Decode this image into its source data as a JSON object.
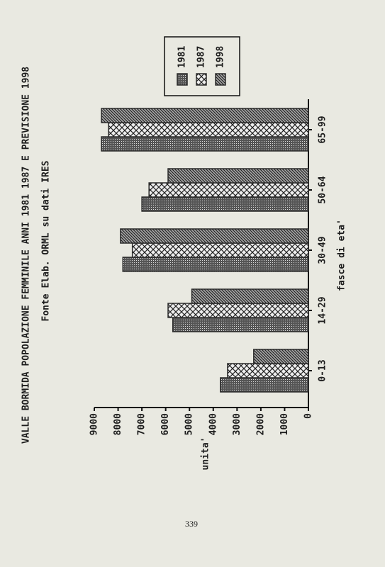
{
  "chart_data": {
    "type": "bar",
    "title": "VALLE BORMIDA POPOLAZIONE FEMMINILE ANNI 1981 1987 E PREVISIONE 1998",
    "subtitle": "Fonte Elab. ORML su dati IRES",
    "x_label": "fasce di eta'",
    "y_label": "unita'",
    "categories": [
      "0-13",
      "14-29",
      "30-49",
      "50-64",
      "65-99"
    ],
    "series": [
      {
        "name": "1981",
        "color": "#2a2a2a",
        "pattern": "dots",
        "values": [
          3700,
          5700,
          7800,
          7000,
          8700
        ]
      },
      {
        "name": "1987",
        "color": "#2a2a2a",
        "pattern": "cross",
        "values": [
          3400,
          5900,
          7400,
          6700,
          8400
        ]
      },
      {
        "name": "1998",
        "color": "#2a2a2a",
        "pattern": "diagonal",
        "values": [
          2300,
          4900,
          7900,
          5900,
          8700
        ]
      }
    ],
    "ylim": [
      0,
      9000
    ],
    "yticks": [
      0,
      1000,
      2000,
      3000,
      4000,
      5000,
      6000,
      7000,
      8000,
      9000
    ],
    "page_number": "339"
  }
}
